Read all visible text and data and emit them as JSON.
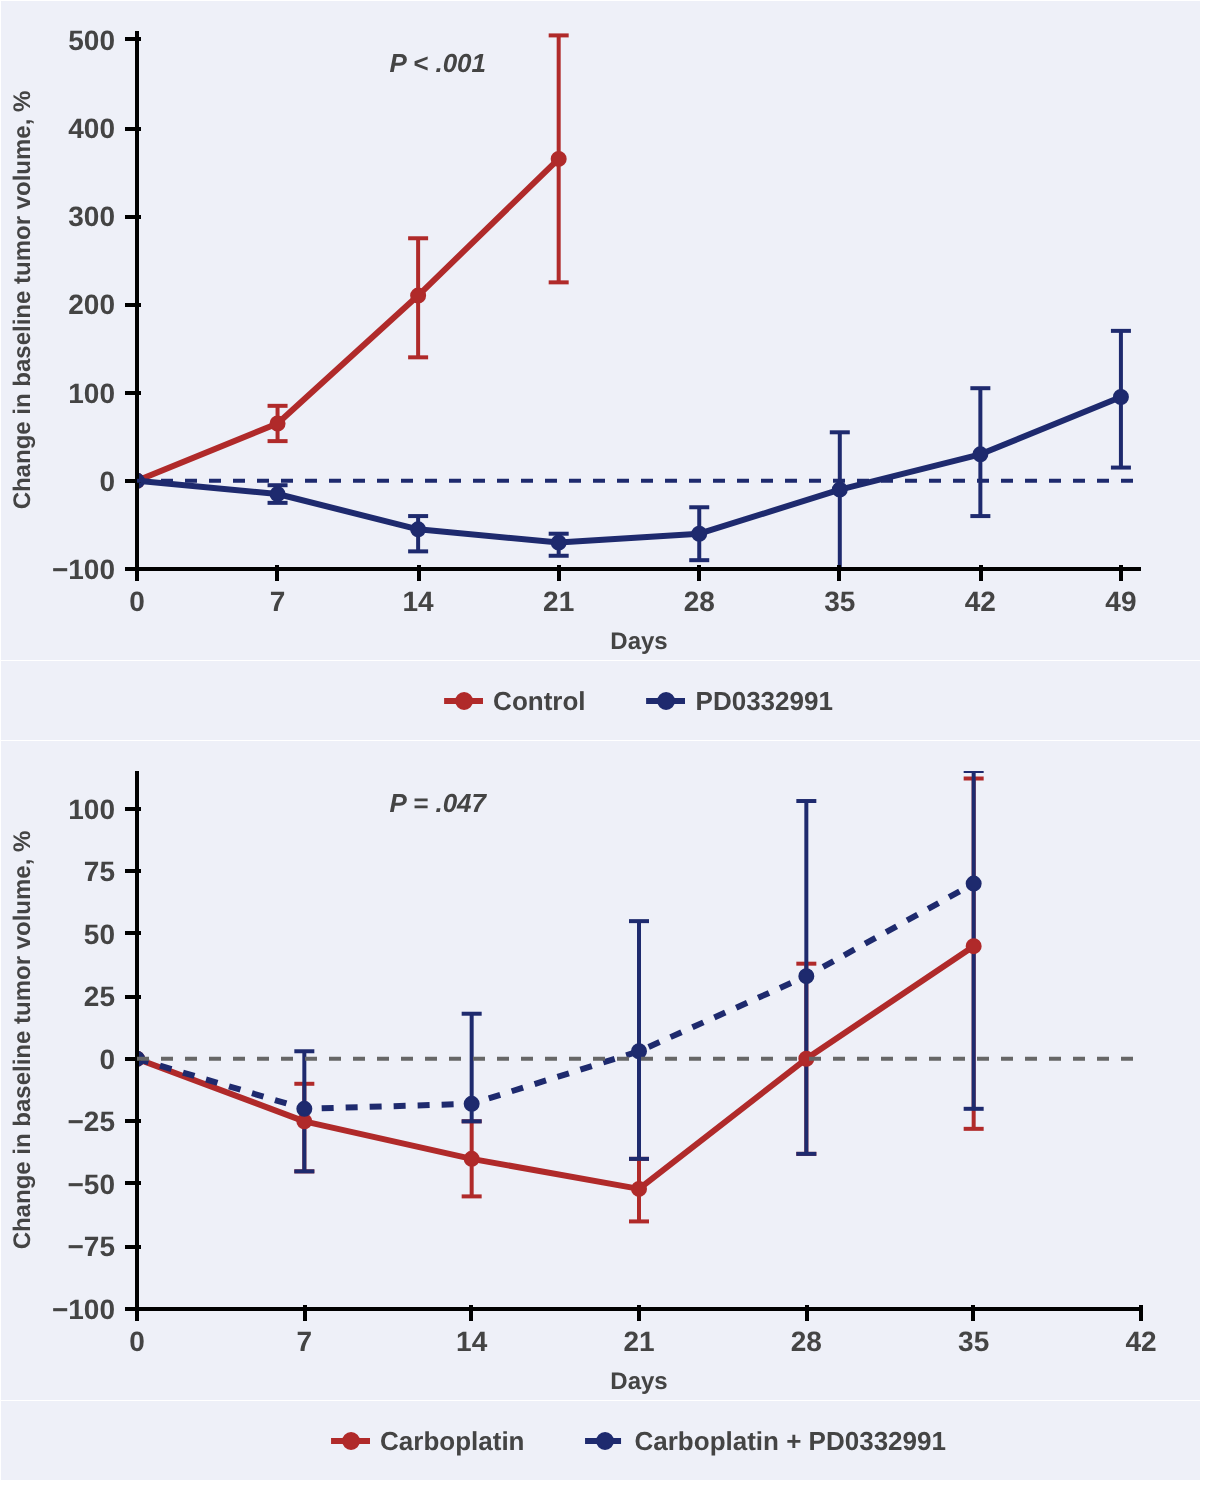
{
  "chart_data": [
    {
      "type": "line",
      "xlabel": "Days",
      "ylabel": "Change in baseline tumor volume, %",
      "x": [
        0,
        7,
        14,
        21,
        28,
        35,
        42,
        49
      ],
      "xlim": [
        0,
        50
      ],
      "ylim": [
        -100,
        510
      ],
      "xticks": [
        0,
        7,
        14,
        21,
        28,
        35,
        42,
        49
      ],
      "yticks": [
        -100,
        0,
        100,
        200,
        300,
        400,
        500
      ],
      "grid": false,
      "legend": "bottom",
      "marker": "circle",
      "series": [
        {
          "name": "Control",
          "color": "#b02a2a",
          "line_style": "solid",
          "values": [
            0,
            65,
            210,
            365,
            null,
            null,
            null,
            null
          ],
          "errors": [
            null,
            [
              45,
              85
            ],
            [
              140,
              275
            ],
            [
              225,
              505
            ],
            null,
            null,
            null,
            null
          ]
        },
        {
          "name": "PD0332991",
          "color": "#1e2a6e",
          "line_style": "solid",
          "values": [
            0,
            -15,
            -55,
            -70,
            -60,
            -10,
            30,
            95
          ],
          "errors": [
            null,
            [
              -25,
              -5
            ],
            [
              -80,
              -40
            ],
            [
              -85,
              -60
            ],
            [
              -90,
              -30
            ],
            [
              -100,
              55
            ],
            [
              -40,
              105
            ],
            [
              15,
              170
            ]
          ]
        }
      ],
      "ref_lines": [
        {
          "axis": "y",
          "value": 0,
          "label": null,
          "color": "#1e2a6e",
          "line_style": "dashed"
        }
      ],
      "annotations": [
        "P < .001"
      ]
    },
    {
      "type": "line",
      "xlabel": "Days",
      "ylabel": "Change in baseline tumor volume, %",
      "x": [
        0,
        7,
        14,
        21,
        28,
        35
      ],
      "xlim": [
        0,
        42
      ],
      "ylim": [
        -100,
        115
      ],
      "xticks": [
        0,
        7,
        14,
        21,
        28,
        35,
        42
      ],
      "yticks": [
        -100,
        -75,
        -50,
        -25,
        0,
        25,
        50,
        75,
        100
      ],
      "grid": false,
      "legend": "bottom",
      "marker": "circle",
      "series": [
        {
          "name": "Carboplatin",
          "color": "#b02a2a",
          "line_style": "solid",
          "values": [
            0,
            -25,
            -40,
            -52,
            0,
            45
          ],
          "errors": [
            null,
            [
              -45,
              -10
            ],
            [
              -55,
              -25
            ],
            [
              -65,
              -40
            ],
            [
              -38,
              38
            ],
            [
              -28,
              112
            ]
          ]
        },
        {
          "name": "Carboplatin + PD0332991",
          "color": "#1e2a6e",
          "line_style": "dashed",
          "values": [
            0,
            -20,
            -18,
            3,
            33,
            70
          ],
          "errors": [
            null,
            [
              -45,
              3
            ],
            [
              -25,
              18
            ],
            [
              -40,
              55
            ],
            [
              -38,
              103
            ],
            [
              -20,
              115
            ]
          ]
        }
      ],
      "ref_lines": [
        {
          "axis": "y",
          "value": 0,
          "label": null,
          "color": "#666666",
          "line_style": "dashed"
        }
      ],
      "annotations": [
        "P = .047"
      ]
    }
  ]
}
